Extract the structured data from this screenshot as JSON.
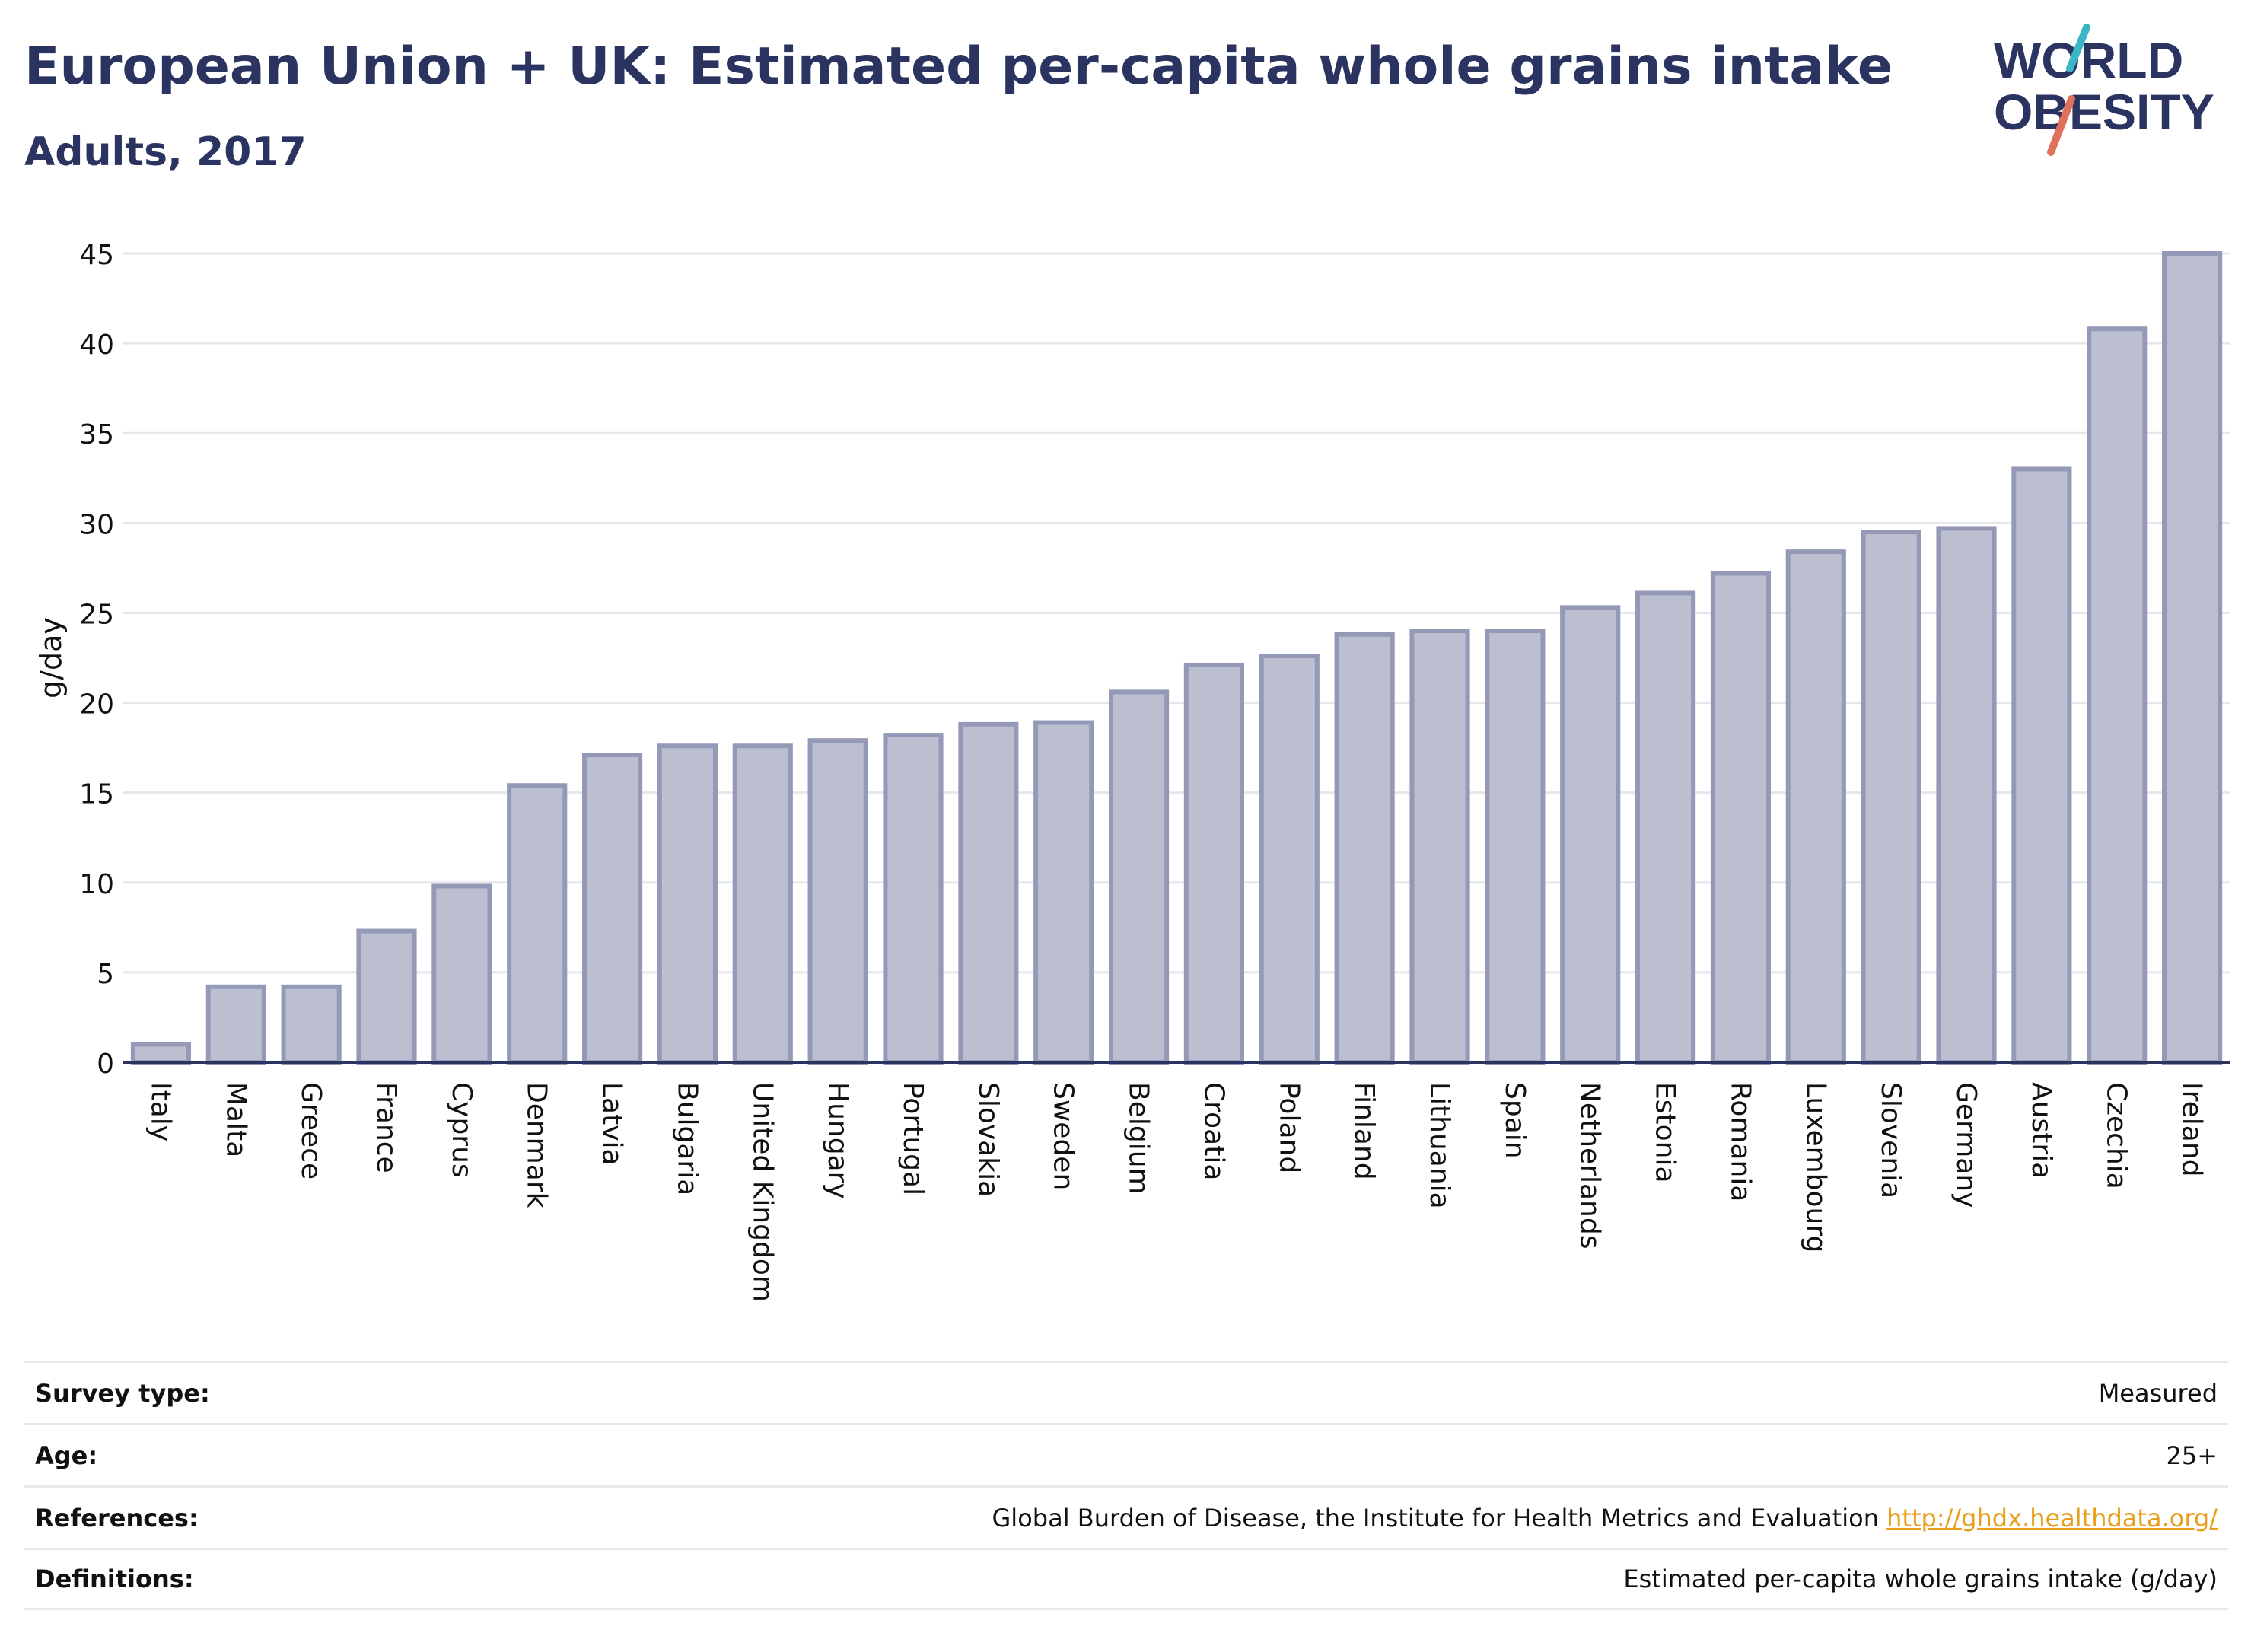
{
  "header": {
    "title": "European Union + UK: Estimated per-capita whole grains intake",
    "subtitle": "Adults, 2017"
  },
  "logo": {
    "line1": "WORLD",
    "line2": "OBESITY",
    "colors": {
      "text": "#2b3360",
      "slash_top": "#3bb6c6",
      "slash_bottom": "#e0705c"
    }
  },
  "chart_data": {
    "type": "bar",
    "title": "European Union + UK: Estimated per-capita whole grains intake",
    "subtitle": "Adults, 2017",
    "xlabel": "",
    "ylabel": "g/day",
    "ylim": [
      0,
      45
    ],
    "yticks": [
      0,
      5,
      10,
      15,
      20,
      25,
      30,
      35,
      40,
      45
    ],
    "grid": true,
    "bar_color": "#bcbfd0",
    "bar_border": "#9499b8",
    "categories": [
      "Italy",
      "Malta",
      "Greece",
      "France",
      "Cyprus",
      "Denmark",
      "Latvia",
      "Bulgaria",
      "United Kingdom",
      "Hungary",
      "Portugal",
      "Slovakia",
      "Sweden",
      "Belgium",
      "Croatia",
      "Poland",
      "Finland",
      "Lithuania",
      "Spain",
      "Netherlands",
      "Estonia",
      "Romania",
      "Luxembourg",
      "Slovenia",
      "Germany",
      "Austria",
      "Czechia",
      "Ireland"
    ],
    "values": [
      1.0,
      4.2,
      4.2,
      7.3,
      9.8,
      15.4,
      17.1,
      17.6,
      17.6,
      17.9,
      18.2,
      18.8,
      18.9,
      20.6,
      22.1,
      22.6,
      23.8,
      24.0,
      24.0,
      25.3,
      26.1,
      27.2,
      28.4,
      29.5,
      29.7,
      33.0,
      40.8,
      45.0
    ]
  },
  "info": [
    {
      "label": "Survey type:",
      "value": "Measured"
    },
    {
      "label": "Age:",
      "value": "25+"
    },
    {
      "label": "References:",
      "value": "Global Burden of Disease, the Institute for Health Metrics and Evaluation",
      "link": "http://ghdx.healthdata.org/"
    },
    {
      "label": "Definitions:",
      "value": "Estimated per-capita whole grains intake (g/day)"
    }
  ]
}
